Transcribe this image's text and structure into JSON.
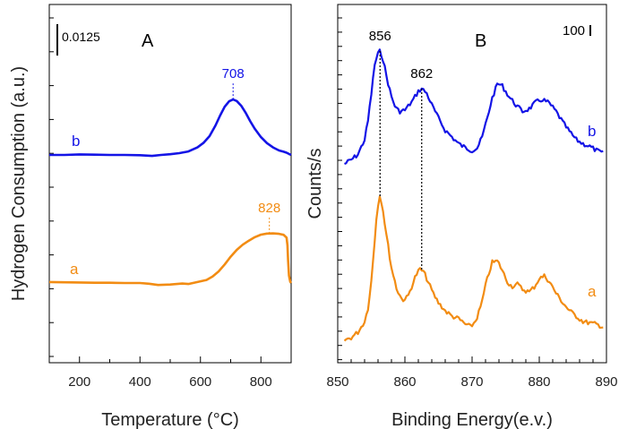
{
  "chart_data": [
    {
      "panel_label": "A",
      "type": "line",
      "xlabel": "Temperature (°C)",
      "ylabel": "Hydrogen Consumption (a.u.)",
      "xlim": [
        100,
        900
      ],
      "xticks": [
        "200",
        "400",
        "600",
        "800"
      ],
      "scale_bar_label": "0.0125",
      "colors": {
        "b": "#1414e6",
        "a": "#f28c13"
      },
      "series": [
        {
          "name": "b",
          "peak_label": "708",
          "x": [
            100,
            150,
            200,
            250,
            300,
            350,
            400,
            440,
            470,
            500,
            530,
            560,
            590,
            610,
            630,
            650,
            665,
            680,
            695,
            708,
            720,
            735,
            750,
            765,
            780,
            800,
            820,
            840,
            860,
            875,
            885,
            893,
            900
          ],
          "y": [
            0.0,
            0.0,
            0.0002,
            0.0001,
            0.0,
            0.0,
            -0.0001,
            -0.0004,
            0.0,
            0.0003,
            0.0007,
            0.0014,
            0.003,
            0.0048,
            0.0075,
            0.0118,
            0.0157,
            0.0192,
            0.0214,
            0.0221,
            0.0215,
            0.0196,
            0.0167,
            0.0134,
            0.0104,
            0.0071,
            0.0047,
            0.003,
            0.0018,
            0.0013,
            0.0009,
            0.0004,
            0.0
          ]
        },
        {
          "name": "a",
          "peak_label": "828",
          "x": [
            100,
            150,
            200,
            250,
            300,
            350,
            400,
            430,
            460,
            500,
            540,
            560,
            590,
            620,
            640,
            660,
            680,
            700,
            720,
            740,
            760,
            780,
            800,
            820,
            840,
            860,
            875,
            885,
            888,
            890,
            893,
            897,
            900
          ],
          "y": [
            0.0004,
            0.0003,
            0.0002,
            0.0001,
            0.0001,
            0.0,
            0.0,
            -0.0003,
            -0.0008,
            -0.0006,
            -0.0002,
            -0.0004,
            0.0004,
            0.0012,
            0.0026,
            0.0046,
            0.0074,
            0.0105,
            0.0132,
            0.0153,
            0.0169,
            0.0183,
            0.0193,
            0.0197,
            0.0198,
            0.0196,
            0.0192,
            0.0181,
            0.015,
            0.009,
            0.003,
            0.0005,
            0.0
          ]
        }
      ]
    },
    {
      "panel_label": "B",
      "type": "line",
      "xlabel": "Binding Energy(e.v.)",
      "ylabel": "Counts/s",
      "xlim": [
        850,
        890
      ],
      "xticks": [
        "850",
        "860",
        "870",
        "880",
        "890"
      ],
      "scale_bar_label": "100",
      "colors": {
        "b": "#1414e6",
        "a": "#f28c13"
      },
      "peak_labels": [
        {
          "x": 856,
          "label": "856"
        },
        {
          "x": 862,
          "label": "862"
        }
      ],
      "series": [
        {
          "name": "b",
          "x": [
            851,
            852,
            853,
            854,
            854.5,
            855,
            855.5,
            856,
            856.3,
            856.8,
            857.3,
            858,
            858.6,
            859.2,
            860,
            861,
            862,
            862.5,
            863.2,
            864,
            865,
            866,
            867,
            868,
            869,
            870,
            870.8,
            871.5,
            872.2,
            873,
            873.8,
            874.5,
            875.5,
            876.5,
            877.5,
            878.5,
            879.5,
            880.5,
            881.5,
            882.5,
            883.5,
            884.5,
            885.5,
            886.5,
            887.5,
            888.5,
            889.5
          ],
          "y": [
            16,
            19,
            23,
            34,
            48,
            68,
            90,
            98,
            100,
            93,
            80,
            66,
            58,
            55,
            56,
            62,
            70,
            72,
            69,
            60,
            50,
            41,
            36,
            31,
            28,
            26,
            28,
            36,
            49,
            65,
            76,
            74,
            66,
            60,
            55,
            57,
            62,
            64,
            61,
            55,
            47,
            40,
            34,
            31,
            29,
            26,
            24
          ]
        },
        {
          "name": "a",
          "x": [
            851,
            852,
            853,
            854,
            854.5,
            855,
            855.4,
            855.8,
            856.2,
            856.6,
            857.2,
            858,
            858.8,
            859.6,
            860.4,
            861,
            861.6,
            862.2,
            862.8,
            863.5,
            864.3,
            865,
            866,
            867,
            868,
            869,
            869.8,
            870.6,
            871.4,
            872.2,
            873,
            873.8,
            874.5,
            875.2,
            875.9,
            876.7,
            877.5,
            878.5,
            879.3,
            880,
            880.8,
            881.6,
            882.5,
            883.5,
            884.5,
            885.5,
            886.5,
            887.5,
            888.5,
            889.5
          ],
          "y": [
            4,
            6,
            10,
            18,
            28,
            48,
            72,
            98,
            112,
            106,
            84,
            58,
            42,
            34,
            36,
            44,
            52,
            57,
            55,
            47,
            38,
            32,
            26,
            22,
            20,
            16,
            14,
            19,
            31,
            49,
            62,
            63,
            56,
            48,
            44,
            46,
            42,
            40,
            44,
            50,
            52,
            47,
            39,
            32,
            26,
            22,
            18,
            17,
            16,
            14
          ]
        }
      ]
    }
  ]
}
